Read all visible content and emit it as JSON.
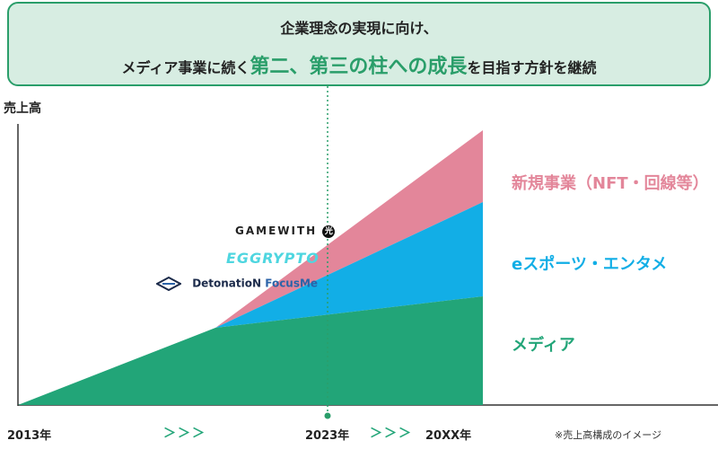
{
  "banner": {
    "line1": "企業理念の実現に向け、",
    "line2_prefix": "メディア事業に続く",
    "line2_highlight": "第二、第三の柱への成長",
    "line2_suffix": "を目指す方針を継続"
  },
  "y_axis_label": "売上高",
  "segments": {
    "new_business": "新規事業（NFT・回線等）",
    "esports": "eスポーツ・エンタメ",
    "media": "メディア"
  },
  "logos": {
    "gamewith": "GAMEWITH",
    "gamewith_badge": "光",
    "eggrypto": "EGGRYPTO",
    "detonation_main": "DetonatioN",
    "detonation_sub": "FocusMe"
  },
  "x_axis": {
    "start": "2013年",
    "mid": "2023年",
    "end": "20XX年",
    "arrows1": "＞＞＞",
    "arrows2": "＞＞＞"
  },
  "note": "※売上高構成のイメージ",
  "colors": {
    "media": "#22a578",
    "esports": "#12aee6",
    "new_business": "#e3869a",
    "banner_bg": "#d7ede2",
    "banner_border": "#2a9e6a"
  }
}
